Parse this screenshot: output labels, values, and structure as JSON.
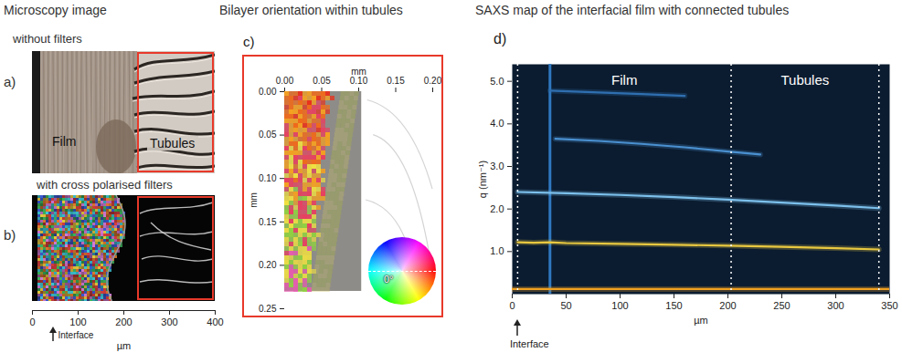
{
  "microscopy": {
    "title": "Microscopy image",
    "a": {
      "letter": "a)",
      "caption": "without filters",
      "labels": [
        "Film",
        "Tubules"
      ]
    },
    "b": {
      "letter": "b)",
      "caption": "with cross polarised filters"
    },
    "axis": {
      "xlim": [
        0,
        400
      ],
      "xticks": [
        0,
        100,
        200,
        300,
        400
      ],
      "xlabel": "µm",
      "interface": {
        "label": "Interface",
        "x": 45
      }
    }
  },
  "orientation": {
    "title": "Bilayer orientation within tubules",
    "letter": "c)",
    "xlabel": "mm",
    "ylabel": "mm",
    "xlim": [
      0,
      0.2
    ],
    "xticks": [
      0,
      0.05,
      0.1,
      0.15,
      0.2
    ],
    "ylim": [
      0,
      0.25
    ],
    "yticks": [
      0,
      0.05,
      0.1,
      0.15,
      0.2,
      0.25
    ],
    "wheel_label": "0°"
  },
  "chart_data": {
    "type": "line",
    "title": "SAXS map of the interfacial film with connected tubules",
    "letter": "d)",
    "xlabel": "µm",
    "ylabel": "q (nm⁻¹)",
    "xlim": [
      0,
      350
    ],
    "xticks": [
      0,
      50,
      100,
      150,
      200,
      250,
      300,
      350
    ],
    "ylim": [
      0,
      5.4
    ],
    "yticks": [
      {
        "value": 1,
        "label": "1.0"
      },
      {
        "value": 2,
        "label": "2.0"
      },
      {
        "value": 3,
        "label": "3.0"
      },
      {
        "value": 4,
        "label": "4.0"
      },
      {
        "value": 5,
        "label": "5.0"
      }
    ],
    "series": [
      {
        "color": "#7cc0ec",
        "x": [
          5,
          50,
          100,
          150,
          200,
          250,
          300,
          340
        ],
        "values": [
          2.4,
          2.37,
          2.33,
          2.28,
          2.22,
          2.15,
          2.08,
          2.02
        ]
      },
      {
        "color": "#e8c840",
        "x": [
          5,
          20,
          35,
          50,
          100,
          150,
          200,
          250,
          300,
          340
        ],
        "values": [
          1.22,
          1.21,
          1.22,
          1.2,
          1.18,
          1.16,
          1.14,
          1.11,
          1.08,
          1.05
        ]
      },
      {
        "color": "#4a90d0",
        "x": [
          40,
          80,
          120,
          160,
          200,
          230
        ],
        "values": [
          3.65,
          3.6,
          3.53,
          3.45,
          3.35,
          3.28
        ]
      },
      {
        "color": "#2f6fb0",
        "x": [
          35,
          80,
          120,
          160
        ],
        "values": [
          4.78,
          4.74,
          4.7,
          4.66
        ]
      },
      {
        "color": "#f0a020",
        "x": [
          0,
          350
        ],
        "values": [
          0.12,
          0.12
        ]
      }
    ],
    "vertical_lines": [
      {
        "x": 35,
        "color": "#2f78c0"
      }
    ],
    "dividers": [
      5,
      203,
      340
    ],
    "regions": [
      {
        "label": "Film",
        "x": [
          5,
          203
        ]
      },
      {
        "label": "Tubules",
        "x": [
          203,
          340
        ]
      }
    ],
    "interface": {
      "label": "Interface",
      "x": 5
    }
  }
}
